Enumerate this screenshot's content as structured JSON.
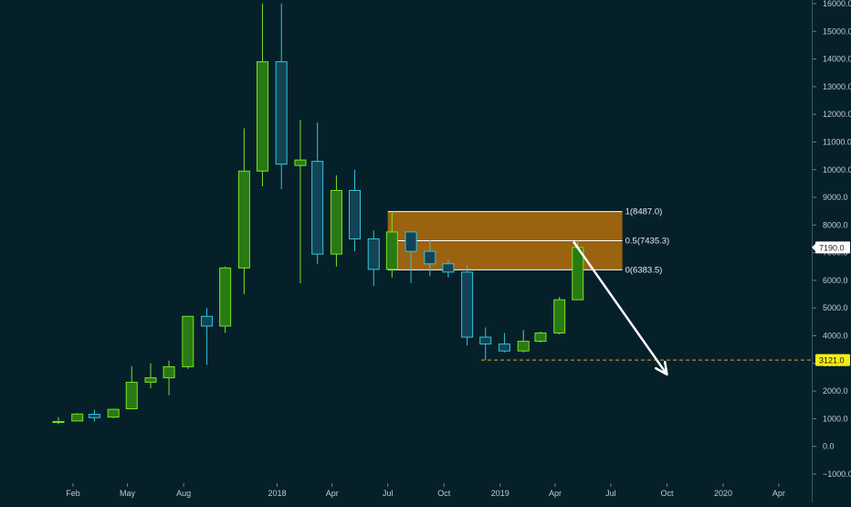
{
  "colors": {
    "background": "#06202a",
    "up_fill": "#2a7a14",
    "up_border": "#7be024",
    "down_fill": "#124356",
    "down_border": "#35c4d8",
    "fib_fill": "#a8680e",
    "fib_line": "#ffffff",
    "axis_text": "#bfcbd0",
    "price_label_bg": "#ffffff",
    "price_label_text": "#222222",
    "target_label_bg": "#f4ee14",
    "target_line": "#e8a21c",
    "arrow": "#ffffff"
  },
  "chart_data": {
    "type": "candlestick",
    "title": "",
    "xlabel": "",
    "ylabel": "",
    "ylim": [
      -1100,
      16100
    ],
    "y_ticks": [
      -1000,
      0,
      1000,
      2000,
      3000,
      4000,
      5000,
      6000,
      7000,
      8000,
      9000,
      10000,
      11000,
      12000,
      13000,
      14000,
      15000,
      16000
    ],
    "y_tick_labels": [
      "−1000.0",
      "0.0",
      "1000.0",
      "2000.0",
      "3000.0",
      "4000.0",
      "5000.0",
      "6000.0",
      "7000.0",
      "8000.0",
      "9000.0",
      "10000.0",
      "11000.0",
      "12000.0",
      "13000.0",
      "14000.0",
      "15000.0",
      "16000.0"
    ],
    "x_ticks": [
      {
        "label": "Feb",
        "date": "2017-02-01"
      },
      {
        "label": "May",
        "date": "2017-05-01"
      },
      {
        "label": "Aug",
        "date": "2017-08-01"
      },
      {
        "label": "2018",
        "date": "2018-01-01"
      },
      {
        "label": "Apr",
        "date": "2018-04-01"
      },
      {
        "label": "Jul",
        "date": "2018-07-01"
      },
      {
        "label": "Oct",
        "date": "2018-10-01"
      },
      {
        "label": "2019",
        "date": "2019-01-01"
      },
      {
        "label": "Apr",
        "date": "2019-04-01"
      },
      {
        "label": "Jul",
        "date": "2019-07-01"
      },
      {
        "label": "Oct",
        "date": "2019-10-01"
      },
      {
        "label": "2020",
        "date": "2020-01-01"
      },
      {
        "label": "Apr",
        "date": "2020-04-01"
      }
    ],
    "candles": [
      {
        "date": "2017-01-08",
        "open": 870,
        "high": 1060,
        "low": 800,
        "close": 900
      },
      {
        "date": "2017-02-08",
        "open": 920,
        "high": 1200,
        "low": 900,
        "close": 1170
      },
      {
        "date": "2017-03-08",
        "open": 1160,
        "high": 1330,
        "low": 900,
        "close": 1040
      },
      {
        "date": "2017-04-08",
        "open": 1060,
        "high": 1360,
        "low": 1020,
        "close": 1340
      },
      {
        "date": "2017-05-08",
        "open": 1360,
        "high": 2900,
        "low": 1340,
        "close": 2320
      },
      {
        "date": "2017-06-08",
        "open": 2320,
        "high": 3000,
        "low": 2100,
        "close": 2480
      },
      {
        "date": "2017-07-08",
        "open": 2480,
        "high": 3100,
        "low": 1850,
        "close": 2880
      },
      {
        "date": "2017-08-08",
        "open": 2880,
        "high": 4700,
        "low": 2800,
        "close": 4700
      },
      {
        "date": "2017-09-08",
        "open": 4700,
        "high": 5000,
        "low": 2950,
        "close": 4350
      },
      {
        "date": "2017-10-08",
        "open": 4350,
        "high": 6500,
        "low": 4100,
        "close": 6450
      },
      {
        "date": "2017-11-08",
        "open": 6450,
        "high": 11500,
        "low": 5500,
        "close": 9950
      },
      {
        "date": "2017-12-08",
        "open": 9950,
        "high": 16000,
        "low": 9400,
        "close": 13900
      },
      {
        "date": "2018-01-08",
        "open": 13900,
        "high": 16000,
        "low": 9300,
        "close": 10200
      },
      {
        "date": "2018-02-08",
        "open": 10150,
        "high": 11800,
        "low": 5900,
        "close": 10350
      },
      {
        "date": "2018-03-08",
        "open": 10300,
        "high": 11700,
        "low": 6600,
        "close": 6950
      },
      {
        "date": "2018-04-08",
        "open": 6950,
        "high": 9800,
        "low": 6500,
        "close": 9250
      },
      {
        "date": "2018-05-08",
        "open": 9250,
        "high": 10000,
        "low": 7050,
        "close": 7500
      },
      {
        "date": "2018-06-08",
        "open": 7500,
        "high": 7800,
        "low": 5800,
        "close": 6400
      },
      {
        "date": "2018-07-08",
        "open": 6400,
        "high": 8500,
        "low": 6100,
        "close": 7750
      },
      {
        "date": "2018-08-08",
        "open": 7750,
        "high": 7800,
        "low": 5900,
        "close": 7050
      },
      {
        "date": "2018-09-08",
        "open": 7050,
        "high": 7450,
        "low": 6150,
        "close": 6600
      },
      {
        "date": "2018-10-08",
        "open": 6600,
        "high": 6750,
        "low": 6100,
        "close": 6300
      },
      {
        "date": "2018-11-08",
        "open": 6300,
        "high": 6550,
        "low": 3650,
        "close": 3950
      },
      {
        "date": "2018-12-08",
        "open": 3950,
        "high": 4300,
        "low": 3121,
        "close": 3700
      },
      {
        "date": "2019-01-08",
        "open": 3700,
        "high": 4100,
        "low": 3400,
        "close": 3450
      },
      {
        "date": "2019-02-08",
        "open": 3450,
        "high": 4200,
        "low": 3400,
        "close": 3800
      },
      {
        "date": "2019-03-08",
        "open": 3800,
        "high": 4150,
        "low": 3750,
        "close": 4100
      },
      {
        "date": "2019-04-08",
        "open": 4100,
        "high": 5400,
        "low": 4050,
        "close": 5300
      },
      {
        "date": "2019-05-08",
        "open": 5300,
        "high": 7450,
        "low": 5300,
        "close": 7190
      }
    ],
    "fib_retracement": {
      "start_date": "2018-07-01",
      "end_date": "2019-07-20",
      "levels": [
        {
          "value": 8487.0,
          "label": "1(8487.0)"
        },
        {
          "value": 7435.3,
          "label": "0.5(7435.3)"
        },
        {
          "value": 6383.5,
          "label": "0(6383.5)"
        }
      ]
    },
    "current_price": {
      "value": 7190.0,
      "label": "7190.0"
    },
    "target_line": {
      "value": 3121.0,
      "label": "3121.0",
      "start_date": "2018-12-01"
    },
    "arrow": {
      "from": {
        "date": "2019-05-01",
        "value": 7400
      },
      "to": {
        "date": "2019-10-01",
        "value": 2600
      }
    }
  }
}
